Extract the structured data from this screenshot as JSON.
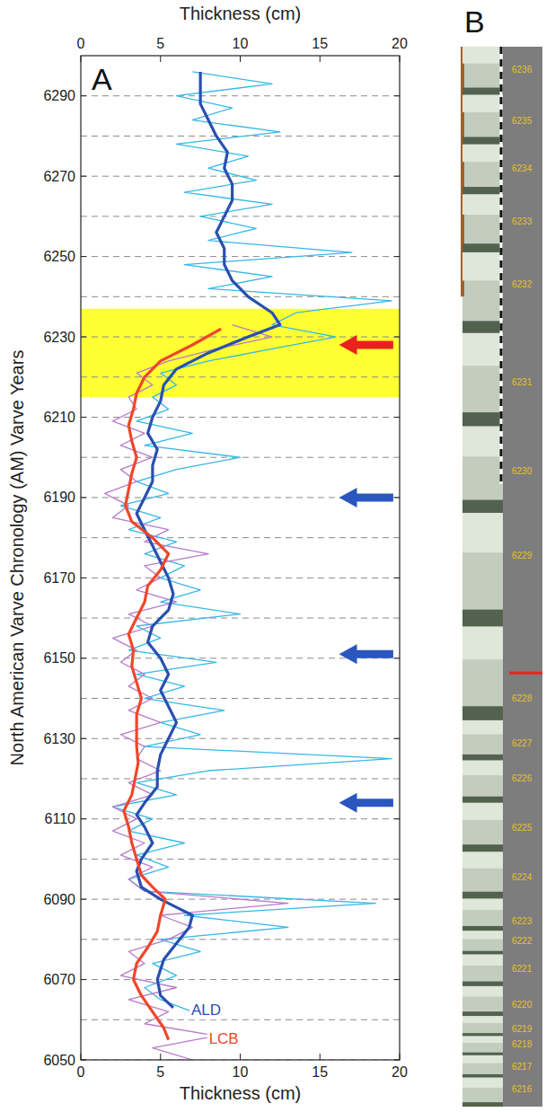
{
  "chart_data": {
    "type": "line",
    "panel": "A",
    "x_label_top": "Thickness (cm)",
    "x_label": "Thickness (cm)",
    "y_label": "North American Varve Chronology (AM) Varve Years",
    "xlim": [
      0,
      20
    ],
    "xticks": [
      0,
      5,
      10,
      15,
      20
    ],
    "ylim": [
      6050,
      6300
    ],
    "yticks": [
      6050,
      6070,
      6090,
      6110,
      6130,
      6150,
      6170,
      6190,
      6210,
      6230,
      6250,
      6270,
      6290
    ],
    "grid": true,
    "highlight": {
      "from": 6215,
      "to": 6237,
      "color": "#ffff33"
    },
    "arrows": [
      {
        "year": 6228,
        "color": "#e8231e"
      },
      {
        "year": 6190,
        "color": "#2a56c0"
      },
      {
        "year": 6151,
        "color": "#2a56c0"
      },
      {
        "year": 6114,
        "color": "#2a56c0"
      }
    ],
    "series": [
      {
        "name": "ALD",
        "color": "#2a4fb0",
        "annual_color": "#35b8e6",
        "annual": {
          "years": [
            6062,
            6065,
            6068,
            6071,
            6074,
            6077,
            6080,
            6083,
            6086,
            6089,
            6092,
            6095,
            6098,
            6101,
            6104,
            6107,
            6110,
            6113,
            6116,
            6119,
            6122,
            6125,
            6128,
            6131,
            6134,
            6137,
            6140,
            6143,
            6146,
            6149,
            6152,
            6155,
            6158,
            6161,
            6164,
            6167,
            6170,
            6173,
            6176,
            6179,
            6182,
            6185,
            6188,
            6191,
            6194,
            6197,
            6200,
            6203,
            6206,
            6209,
            6212,
            6215,
            6218,
            6221,
            6224,
            6227,
            6230,
            6233,
            6236,
            6239,
            6242,
            6245,
            6248,
            6251,
            6254,
            6257,
            6260,
            6263,
            6266,
            6269,
            6272,
            6275,
            6278,
            6281,
            6284,
            6287,
            6290,
            6293,
            6296
          ],
          "values": [
            7.0,
            5.0,
            4.0,
            6.0,
            4.5,
            7.5,
            5.0,
            13.0,
            6.5,
            18.5,
            4.0,
            3.0,
            5.5,
            3.5,
            6.5,
            3.0,
            4.5,
            2.0,
            6.0,
            3.5,
            8.0,
            19.5,
            4.0,
            7.5,
            5.0,
            9.0,
            4.0,
            6.5,
            3.5,
            8.5,
            3.0,
            5.0,
            3.5,
            10.0,
            5.0,
            7.5,
            5.0,
            6.5,
            4.0,
            6.0,
            3.0,
            5.0,
            2.5,
            5.5,
            3.5,
            6.0,
            10.0,
            4.0,
            7.0,
            3.5,
            5.5,
            4.5,
            6.0,
            5.0,
            8.0,
            12.0,
            16.0,
            12.0,
            13.5,
            19.5,
            8.0,
            12.0,
            6.5,
            17.0,
            8.0,
            11.0,
            7.5,
            12.0,
            6.5,
            11.0,
            8.0,
            10.5,
            6.0,
            12.5,
            7.0,
            9.5,
            6.0,
            12.0,
            7.0
          ]
        },
        "smoothed": {
          "years": [
            6063,
            6066,
            6070,
            6075,
            6080,
            6083,
            6086,
            6088,
            6090,
            6093,
            6097,
            6100,
            6104,
            6108,
            6111,
            6114,
            6118,
            6122,
            6126,
            6130,
            6134,
            6138,
            6142,
            6146,
            6150,
            6154,
            6158,
            6162,
            6166,
            6170,
            6174,
            6178,
            6182,
            6186,
            6190,
            6194,
            6198,
            6202,
            6206,
            6210,
            6214,
            6218,
            6222,
            6226,
            6230,
            6233,
            6236,
            6240,
            6244,
            6248,
            6252,
            6256,
            6260,
            6264,
            6268,
            6272,
            6276,
            6280,
            6284,
            6288,
            6292,
            6296
          ],
          "values": [
            5.8,
            5.0,
            4.8,
            5.2,
            6.2,
            6.8,
            7.0,
            6.0,
            5.0,
            3.8,
            3.5,
            3.8,
            4.5,
            4.0,
            3.5,
            4.0,
            4.8,
            4.8,
            5.0,
            5.5,
            6.0,
            5.5,
            5.0,
            5.5,
            5.0,
            4.2,
            4.5,
            5.5,
            5.8,
            5.5,
            5.0,
            4.5,
            4.0,
            3.5,
            4.0,
            4.5,
            4.5,
            4.8,
            4.2,
            4.5,
            5.0,
            5.2,
            6.0,
            8.0,
            10.5,
            12.5,
            12.0,
            10.5,
            9.5,
            9.0,
            9.0,
            8.5,
            9.0,
            9.5,
            9.5,
            9.0,
            9.2,
            8.5,
            8.0,
            7.5,
            7.5,
            7.5
          ]
        }
      },
      {
        "name": "LCB",
        "color": "#f0462a",
        "annual_color": "#b77acb",
        "annual": {
          "years": [
            6050,
            6053,
            6056,
            6059,
            6062,
            6065,
            6068,
            6071,
            6074,
            6077,
            6080,
            6083,
            6086,
            6089,
            6092,
            6095,
            6098,
            6101,
            6104,
            6107,
            6110,
            6113,
            6116,
            6119,
            6122,
            6125,
            6128,
            6131,
            6134,
            6137,
            6140,
            6143,
            6146,
            6149,
            6152,
            6155,
            6158,
            6161,
            6164,
            6167,
            6170,
            6173,
            6176,
            6179,
            6182,
            6185,
            6188,
            6191,
            6194,
            6197,
            6200,
            6203,
            6206,
            6209,
            6212,
            6215,
            6218,
            6221,
            6224,
            6227,
            6230,
            6233
          ],
          "values": [
            7.0,
            4.5,
            8.5,
            4.0,
            5.5,
            3.0,
            6.0,
            2.5,
            4.0,
            3.0,
            5.5,
            7.0,
            5.0,
            13.0,
            4.0,
            3.0,
            4.5,
            2.5,
            4.0,
            2.0,
            3.5,
            2.0,
            4.5,
            3.0,
            5.0,
            3.5,
            4.0,
            2.5,
            5.0,
            3.0,
            4.5,
            3.0,
            4.0,
            2.5,
            3.5,
            2.0,
            4.5,
            3.0,
            6.0,
            3.5,
            5.0,
            4.0,
            8.0,
            4.0,
            5.5,
            2.0,
            3.0,
            1.5,
            3.5,
            2.5,
            4.5,
            2.5,
            4.0,
            2.0,
            3.5,
            3.0,
            4.5,
            3.5,
            5.5,
            8.5,
            12.0,
            9.5
          ]
        },
        "smoothed": {
          "years": [
            6055,
            6058,
            6062,
            6066,
            6070,
            6074,
            6078,
            6082,
            6086,
            6090,
            6093,
            6096,
            6100,
            6104,
            6108,
            6112,
            6116,
            6120,
            6124,
            6128,
            6132,
            6136,
            6140,
            6144,
            6148,
            6152,
            6156,
            6160,
            6164,
            6168,
            6172,
            6176,
            6180,
            6184,
            6188,
            6192,
            6196,
            6200,
            6204,
            6208,
            6212,
            6216,
            6220,
            6224,
            6228,
            6232
          ],
          "values": [
            5.5,
            5.2,
            4.5,
            3.8,
            3.3,
            3.5,
            4.2,
            4.8,
            5.0,
            5.3,
            4.5,
            3.8,
            3.5,
            3.2,
            3.0,
            2.7,
            3.2,
            3.4,
            3.6,
            3.5,
            3.5,
            3.5,
            3.8,
            3.5,
            3.2,
            3.3,
            3.0,
            3.5,
            4.0,
            4.2,
            5.0,
            5.5,
            4.5,
            3.2,
            2.8,
            3.0,
            3.2,
            3.5,
            3.2,
            3.0,
            3.3,
            3.5,
            4.0,
            5.0,
            7.0,
            8.8
          ]
        }
      }
    ]
  },
  "core_image": {
    "panel": "B",
    "varve_labels": [
      6236,
      6235,
      6234,
      6233,
      6232,
      6231,
      6230,
      6229,
      6228,
      6227,
      6226,
      6225,
      6224,
      6223,
      6222,
      6221,
      6220,
      6219,
      6218,
      6217,
      6216
    ]
  }
}
